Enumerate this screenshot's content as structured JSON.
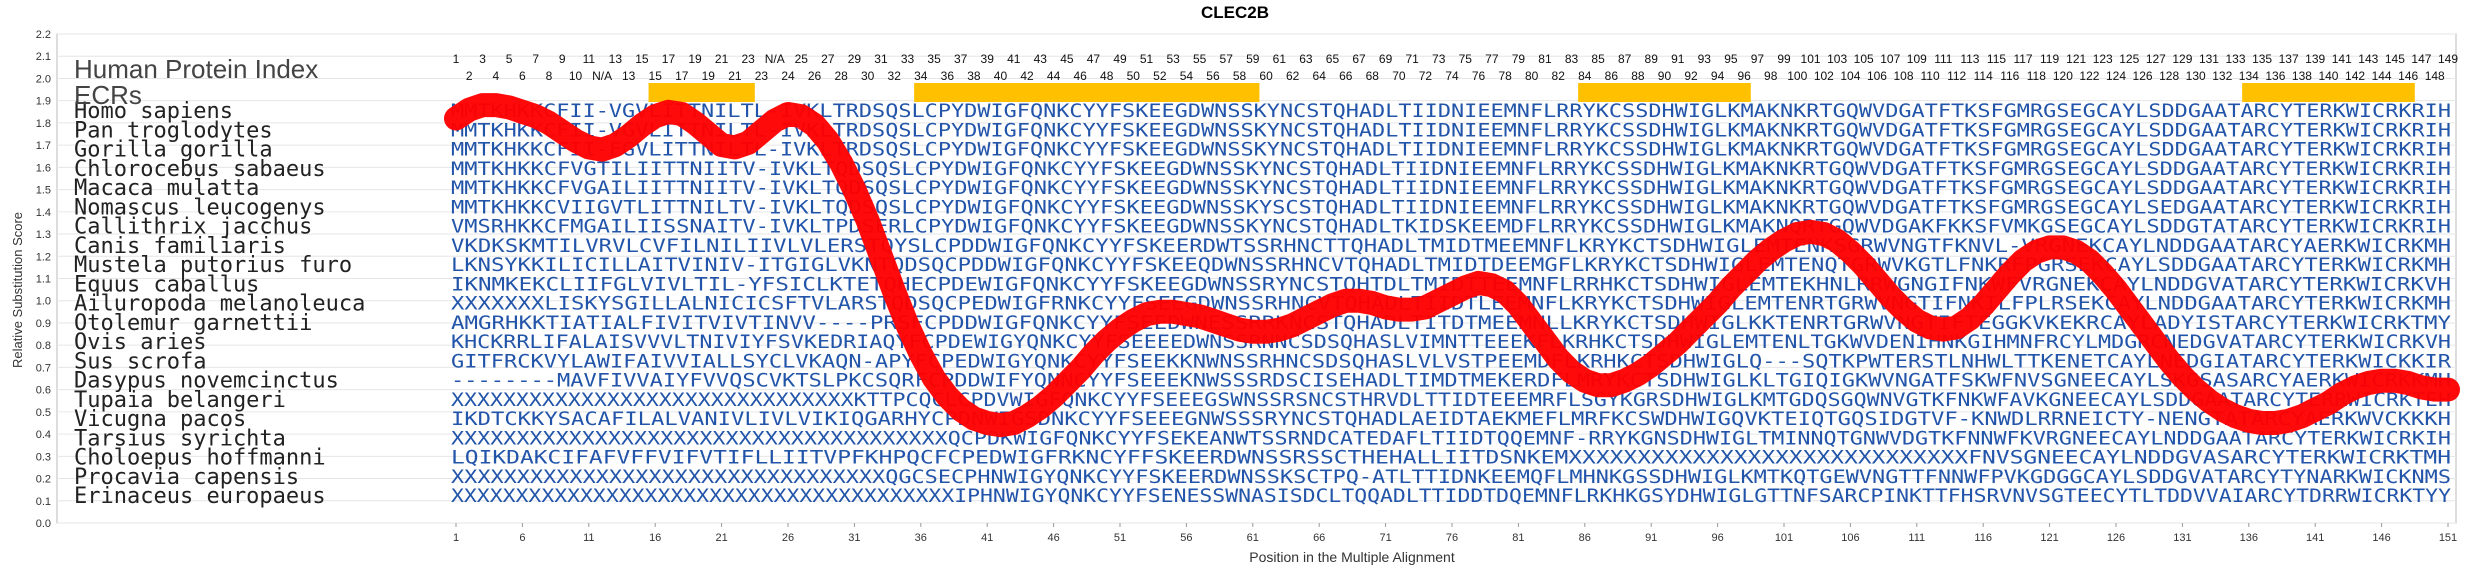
{
  "chart_data": {
    "type": "sequence-alignment-line",
    "title": "CLEC2B",
    "xlabel": "Position in the Multiple Alignment",
    "ylabel": "Relative Substitution Score",
    "ylim": [
      0.0,
      2.2
    ],
    "yticks": [
      0.0,
      0.1,
      0.2,
      0.3,
      0.4,
      0.5,
      0.6,
      0.7,
      0.8,
      0.9,
      1.0,
      1.1,
      1.2,
      1.3,
      1.4,
      1.5,
      1.6,
      1.7,
      1.8,
      1.9,
      2.0,
      2.1,
      2.2
    ],
    "xlim": [
      1,
      151
    ],
    "xticks": [
      1,
      6,
      11,
      16,
      21,
      26,
      31,
      36,
      41,
      46,
      51,
      56,
      61,
      66,
      71,
      76,
      81,
      86,
      91,
      96,
      101,
      106,
      111,
      116,
      121,
      126,
      131,
      136,
      141,
      146,
      151
    ],
    "index_title": "Human Protein Index",
    "ecr_label": "ECRs",
    "ecr_regions": [
      [
        16,
        23
      ],
      [
        36,
        61
      ],
      [
        86,
        98
      ],
      [
        136,
        148
      ]
    ],
    "human_index_top": [
      "1",
      "3",
      "5",
      "7",
      "9",
      "11",
      "13",
      "15",
      "17",
      "19",
      "21",
      "23",
      "N/A",
      "25",
      "27",
      "29",
      "31",
      "33",
      "35",
      "37",
      "39",
      "41",
      "43",
      "45",
      "47",
      "49",
      "51",
      "53",
      "55",
      "57",
      "59",
      "61",
      "63",
      "65",
      "67",
      "69",
      "71",
      "73",
      "75",
      "77",
      "79",
      "81",
      "83",
      "85",
      "87",
      "89",
      "91",
      "93",
      "95",
      "97",
      "99",
      "101",
      "103",
      "105",
      "107",
      "109",
      "111",
      "113",
      "115",
      "117",
      "119",
      "121",
      "123",
      "125",
      "127",
      "129",
      "131",
      "133",
      "135",
      "137",
      "139",
      "141",
      "143",
      "145",
      "147",
      "149"
    ],
    "human_index_bottom": [
      "2",
      "4",
      "6",
      "8",
      "10",
      "N/A",
      "13",
      "15",
      "17",
      "19",
      "21",
      "23",
      "24",
      "26",
      "28",
      "30",
      "32",
      "34",
      "36",
      "38",
      "40",
      "42",
      "44",
      "46",
      "48",
      "50",
      "52",
      "54",
      "56",
      "58",
      "60",
      "62",
      "64",
      "66",
      "68",
      "70",
      "72",
      "74",
      "76",
      "78",
      "80",
      "82",
      "84",
      "86",
      "88",
      "90",
      "92",
      "94",
      "96",
      "98",
      "100",
      "102",
      "104",
      "106",
      "108",
      "110",
      "112",
      "114",
      "116",
      "118",
      "120",
      "122",
      "124",
      "126",
      "128",
      "130",
      "132",
      "134",
      "136",
      "138",
      "140",
      "142",
      "144",
      "146",
      "148"
    ],
    "species": [
      {
        "name": "Homo sapiens",
        "seq": "MMTKHKKCFII-VGVLITTNILTL-IVKLTRDSQSLCPYDWIGFQNKCYYFSKEEGDWNSSKYNCSTQHADLTIIDNIEEMNFLRRYKCSSDHWIGLKMAKNKRTGQWVDGATFTKSFGMRGSEGCAYLSDDGAATARCYTERKWICRKRIH"
      },
      {
        "name": "Pan troglodytes",
        "seq": "MMTKHKKCFII-VGVLITTNILTL-IVKLTRDSQSLCPYDWIGFQNKCYYFSKEEGDWNSSKYNCSTQHADLTIIDNIEEMNFLRRYKCSSDHWIGLKMAKNKRTGQWVDGATFTKSFGMRGSEGCAYLSDDGAATARCYTERKWICRKRIH"
      },
      {
        "name": "Gorilla gorilla",
        "seq": "MMTKHKKCFII-FGVLITTNILTL-IVKLTRDSQSLCPYDWIGFQNKCYYFSKEEGDWNSSKYNCSTQHADLTIIDNIEEMNFLRRYKCSSDHWIGLKMAKNKRTGQWVDGATFTKSFGMRGSEGCAYLSDDGAATARCYTERKWICRKRIH"
      },
      {
        "name": "Chlorocebus sabaeus",
        "seq": "MMTKHKKCFVGTILIITTNIITV-IVKLTQDSQSLCPYDWIGFQNKCYYFSKEEGDWNSSKYNCSTQHADLTIIDNIEEMNFLRRYKCSSDHWIGLKMAKNKRTGQWVDGATFTKSFGMRGSEGCAYLSDDGAATARCYTERKWICRKRIH"
      },
      {
        "name": "Macaca mulatta",
        "seq": "MMTKHKKCFVGAILIITTNIITV-IVKLTQDSQSLCPYDWIGFQNKCYYFSKEEGDWNSSKYNCSTQHADLTIIDNIEEMNFLRRYKCSSDHWIGLKMAKNKRTGQWVDGATFTKSFGMRGSEGCAYLSDDGAATARCYTERKWICRKRIH"
      },
      {
        "name": "Nomascus leucogenys",
        "seq": "MMTKHKKCVIIGVTLITTNILTV-IVKLTQDSQSLCPYDWIGFQNKCYYFSKEEGDWNSSKYSCSTQHADLTIIDNIEEMNFLRRYKCSSDHWIGLKMAKNKRTGQWVDGATFTKSFGMRGSEGCAYLSEDGAATARCYTERKWICRKRIH"
      },
      {
        "name": "Callithrix jacchus",
        "seq": "VMSRHKKCFMGAILIISSNAITV-IVKLTPDSERLCPYDWIGFQNKCYYFSKEEGDWNSSKYNCSTQHADLTKIDSKEEMDFLRRYKCSSDHWIGLKMAKNQRTGQWVDGAKFKKSFVMKGSEGCAYLSDDGTATARCYTERKWICRKRIH"
      },
      {
        "name": "Canis familiaris",
        "seq": "VKDKSKMTILVRVLCVFILNILIIVLVLERSTQYSLCPDDWIGFQNKCYYFSKEERDWTSSRHNCTTQHADLTMIDTMEEMNFLKRYKCTSDHWIGLEMTENKSGRWVNGTFKNVL-VRGNEKCAYLNDDGAATARCYAERKWICRKMH"
      },
      {
        "name": "Mustela putorius furo",
        "seq": "LKNSYKKILICILLAITVINIV-ITGIGLVKNTQDSQCPDDWIGFQNKCYYFSKEEQDWNSSRHNCVTQHADLTMIDTDEEMGFLKRYKCTSDHWIGLEMTENQTGRWVKGTLFNKRFPGRSEKCAYLSDDGAATARCYTERKWICRKMH"
      },
      {
        "name": "Equus caballus",
        "seq": "IKNMKEKCLIIFGLVIVLTIL-YFSICLKTETQHECPDEWIGFQNKCYYFSKEEGDWNSSRYNCSTQHTDLTMIDTTEEMNFLRRHKCTSDHWIGLEMTEKHNLRRWGNGIFNKWFVRGNEKCAYLNDDGVATARCYTERKWICRKVH"
      },
      {
        "name": "Ailuropoda melanoleuca",
        "seq": "XXXXXXXLISKYSGILLALNICICSFTVLARSTQDSQCPEDWIGFRNKCYYFSEEGDWNSSRHNCVTQHADLTIIDTLEEMNFLKRYKCTSDHWIGLEMTENRTGRWVNGTIFNKILFPLRSEKCAYLNDDGAATARCYTERKWICRKMH"
      },
      {
        "name": "Otolemur garnettii",
        "seq": "AMGRHKKTIATIALFIVITVIVTINVV----PRSFCPDDWIGFQNKCYYFSEEDWNESSRRKNCSTQHADLTITDTMEEMNLLKRYKCTSDHWIGLKKTENRTGRWVNGTIFTEGGKVKEKRCAYLADYISTARCYTERKWICRKTMY"
      },
      {
        "name": "Ovis aries",
        "seq": "KHCKRRLIFALAISVVVLTNIVIYFSVKEDRIAQYFCPDEWIGYQNKCYYFSEEEEDWNSSRNNCSDSQHASLVIMNTTEEEKFLKRHKCTSDHWIGLEMTENLTGKWVDENIHNKGIHMNFRCYLMDGRCNEDGVATARCYTERKWICRKVH"
      },
      {
        "name": "Sus scrofa",
        "seq": "GITFRCKVYLAWIFAIVVIALLSYCLVKAQN-APYFCPEDWIGYQNKCYYFSEEKKNWNSSRHNCSDSQHASLVLVSTPEEMDFLKRHKCTSDHWIGLQ---SQTKPWTERSTLNHWLTTKENETCAYLNEDGIATARCYTERKWICKKIR"
      },
      {
        "name": "Dasypus novemcinctus",
        "seq": "--------MAVFIVVAIYFVVQSCVKTSLPKCSQRFCPDDWIFYQNNCYYFSEEEKNWSSSRDSCISEHADLTIMDTMEKERDFLMRYKCTSDHWIGLKLTGIQIGKWVNGATFSKWFNVSGNEECAYLSKGSASARCYAERKWICRKKMH"
      },
      {
        "name": "Tupaia belangeri",
        "seq": "XXXXXXXXXXXXXXXXXXXXXXXXXXXXXXXKTTPCQCLCPDVWIGFQNKCYYFSEEEGSWNSSRSNCSTHRVDLTTIDTEEEMRFLSGYKGRSDHWIGLKMTGDQSGQWNVGTKFNKWFAVKGNEECAYLSDDGAATARCYTERRWICRKTEH"
      },
      {
        "name": "Vicugna pacos",
        "seq": "IKDTCKKYSACAFILALVANIVLIVLVIKIQGARHYCPDNWIGSDNKCYYFSEEEGNWSSSRYNCSTQHADLAEIDTAEKMEFLMRFKCSWDHWIGQVKTEIQTGQSIDGTVF-KNWDLRRNEICTY-NENGTATARCYAERKWVCKKKH"
      },
      {
        "name": "Tarsius syrichta",
        "seq": "XXXXXXXXXXXXXXXXXXXXXXXXXXXXXXXXXXXXXXQCPDKWIGFQNKCYYFSEKEANWTSSRNDCATEDAFLTIIDTQQEMNF-RRYKGNSDHWIGLTMINNQTGNWVDGTKFNNWFKVRGNEECAYLNDDGAATARCYTERKWICRKIH"
      },
      {
        "name": "Choloepus hoffmanni",
        "seq": "LQIKDAKCIFAFVFFVIFVTIFLLIITVPFKHPQCFCPEDWIGFRKNCYFFSKEERDWNSSRSSCTHEHALLIITDSNKEMXXXXXXXXXXXXXXXXXXXXXXXXXXXXXFNVSGNEECAYLNDDGVASARCYTERKWICRKTMH"
      },
      {
        "name": "Procavia capensis",
        "seq": "XXXXXXXXXXXXXXXXXXXXXXXXXXXXXXXXXQGCSECPHNWIGYQNKCYYFSKEERDWNSSKSCTPQ-ATLTTIDNKEEMQFLMHNKGSSDHWIGLKMTKQTGEWVNGTTFNNWFPVKGDGGCAYLSDDGVATARCYTYNARKWICKNMS"
      },
      {
        "name": "Erinaceus europaeus",
        "seq": "XXXXXXXXXXXXXXXXXXXXXXXXXXXXXXXXXXXXXXXIPHNWIGYQNKCYYFSENESSWNASISDCLTQQADLTTIDDTDQEMNFLRKHKGSYDHWIGLGTTNFSARCPINKTTFHSRVNVSGTEECYTLTDDVVAIARCYTDRRWICRKTYY"
      }
    ],
    "series": [
      {
        "x": [
          1,
          2,
          3,
          4,
          5,
          6,
          7,
          8,
          9,
          10,
          11,
          12,
          13,
          14,
          15,
          16,
          17,
          18,
          19,
          20,
          21,
          22,
          23,
          24,
          25,
          26,
          27,
          28,
          29,
          30,
          31,
          32,
          33,
          34,
          35,
          36,
          37,
          38,
          39,
          40,
          41,
          42,
          43,
          44,
          45,
          46,
          47,
          48,
          49,
          50,
          51,
          52,
          53,
          54,
          55,
          56,
          57,
          58,
          59,
          60,
          61,
          62,
          63,
          64,
          65,
          66,
          67,
          68,
          69,
          70,
          71,
          72,
          73,
          74,
          75,
          76,
          77,
          78,
          79,
          80,
          81,
          82,
          83,
          84,
          85,
          86,
          87,
          88,
          89,
          90,
          91,
          92,
          93,
          94,
          95,
          96,
          97,
          98,
          99,
          100,
          101,
          102,
          103,
          104,
          105,
          106,
          107,
          108,
          109,
          110,
          111,
          112,
          113,
          114,
          115,
          116,
          117,
          118,
          119,
          120,
          121,
          122,
          123,
          124,
          125,
          126,
          127,
          128,
          129,
          130,
          131,
          132,
          133,
          134,
          135,
          136,
          137,
          138,
          139,
          140,
          141,
          142,
          143,
          144,
          145,
          146,
          147,
          148,
          149,
          150,
          151
        ],
        "values": [
          1.82,
          1.86,
          1.88,
          1.88,
          1.87,
          1.85,
          1.83,
          1.8,
          1.76,
          1.72,
          1.69,
          1.68,
          1.7,
          1.74,
          1.79,
          1.83,
          1.85,
          1.84,
          1.8,
          1.75,
          1.7,
          1.69,
          1.71,
          1.76,
          1.81,
          1.84,
          1.83,
          1.79,
          1.72,
          1.62,
          1.5,
          1.36,
          1.2,
          1.04,
          0.89,
          0.76,
          0.65,
          0.57,
          0.51,
          0.47,
          0.45,
          0.44,
          0.45,
          0.48,
          0.52,
          0.57,
          0.63,
          0.69,
          0.76,
          0.82,
          0.87,
          0.91,
          0.94,
          0.95,
          0.95,
          0.94,
          0.93,
          0.91,
          0.89,
          0.87,
          0.86,
          0.86,
          0.87,
          0.89,
          0.92,
          0.95,
          0.98,
          1.0,
          1.0,
          0.99,
          0.97,
          0.96,
          0.96,
          0.97,
          1.0,
          1.03,
          1.06,
          1.08,
          1.07,
          1.04,
          0.98,
          0.9,
          0.82,
          0.74,
          0.68,
          0.64,
          0.62,
          0.62,
          0.64,
          0.67,
          0.71,
          0.76,
          0.81,
          0.87,
          0.93,
          0.99,
          1.06,
          1.12,
          1.18,
          1.23,
          1.27,
          1.3,
          1.31,
          1.3,
          1.27,
          1.22,
          1.16,
          1.09,
          1.02,
          0.96,
          0.91,
          0.88,
          0.87,
          0.88,
          0.92,
          0.98,
          1.05,
          1.12,
          1.18,
          1.22,
          1.24,
          1.24,
          1.22,
          1.18,
          1.12,
          1.05,
          0.97,
          0.89,
          0.81,
          0.73,
          0.66,
          0.6,
          0.55,
          0.51,
          0.48,
          0.46,
          0.45,
          0.45,
          0.46,
          0.48,
          0.51,
          0.54,
          0.58,
          0.61,
          0.63,
          0.64,
          0.64,
          0.63,
          0.61,
          0.6,
          0.6
        ]
      }
    ],
    "colors": {
      "line": "#ff0000",
      "ecr": "#ffc000",
      "residue": "#2255aa",
      "grid": "#e6e6e6"
    },
    "grid": true
  }
}
